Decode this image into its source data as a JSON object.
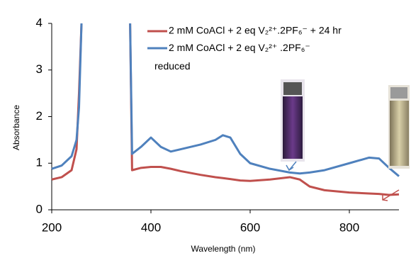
{
  "chart_data": {
    "type": "line",
    "x_label": "Wavelength (nm)",
    "y_label": "Absorbance",
    "x": [
      200,
      220,
      240,
      250,
      255,
      260,
      300,
      358,
      362,
      380,
      400,
      420,
      440,
      460,
      500,
      530,
      545,
      560,
      580,
      600,
      640,
      680,
      700,
      720,
      750,
      800,
      840,
      860,
      880,
      900
    ],
    "series": [
      {
        "name": "2 mM CoACl + 2 eq V₂²⁺.2PF₆⁻ + 24 hr",
        "color": "#c0504d",
        "values": [
          0.65,
          0.7,
          0.85,
          1.3,
          2.5,
          4,
          null,
          4,
          0.85,
          0.9,
          0.92,
          0.92,
          0.88,
          0.83,
          0.75,
          0.7,
          0.68,
          0.66,
          0.63,
          0.62,
          0.65,
          0.7,
          0.65,
          0.5,
          0.42,
          0.37,
          0.35,
          0.34,
          0.32,
          0.33
        ]
      },
      {
        "name": "2 mM CoACl + 2 eq V₂²⁺ .2PF₆⁻\nreduced",
        "color": "#4f81bd",
        "values": [
          0.88,
          0.95,
          1.15,
          1.5,
          2.2,
          4,
          null,
          4,
          1.2,
          1.35,
          1.55,
          1.35,
          1.25,
          1.3,
          1.4,
          1.5,
          1.6,
          1.55,
          1.2,
          1.0,
          0.88,
          0.8,
          0.78,
          0.8,
          0.85,
          1.0,
          1.12,
          1.1,
          0.9,
          0.72
        ]
      }
    ],
    "xlim": [
      200,
      900
    ],
    "ylim": [
      0,
      4
    ],
    "xticks": [
      200,
      400,
      600,
      800
    ],
    "yticks": [
      0,
      1,
      2,
      3,
      4
    ],
    "grid": false
  }
}
